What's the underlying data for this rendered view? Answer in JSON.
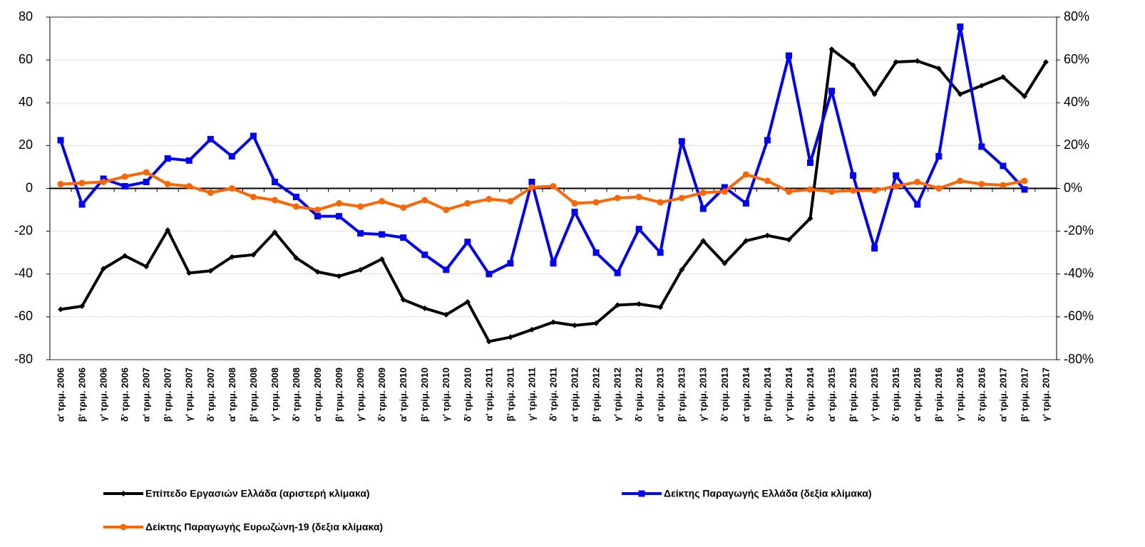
{
  "chart_data": {
    "type": "line",
    "categories": [
      "α' τριμ. 2006",
      "β' τριμ. 2006",
      "γ' τριμ. 2006",
      "δ' τριμ. 2006",
      "α' τριμ. 2007",
      "β' τριμ. 2007",
      "γ' τριμ. 2007",
      "δ' τριμ. 2007",
      "α' τριμ. 2008",
      "β' τριμ. 2008",
      "γ' τριμ. 2008",
      "δ' τριμ. 2008",
      "α' τριμ. 2009",
      "β' τριμ. 2009",
      "γ' τριμ. 2009",
      "δ' τριμ. 2009",
      "α' τρίμ. 2010",
      "β' τρίμ. 2010",
      "γ' τρίμ. 2010",
      "δ' τρίμ. 2010",
      "α' τρίμ. 2011",
      "β' τρίμ. 2011",
      "γ' τρίμ. 2011",
      "δ' τρίμ. 2011",
      "α' τρίμ. 2012",
      "β' τρίμ. 2012",
      "γ' τρίμ. 2012",
      "δ' τρίμ. 2012",
      "α' τρίμ. 2013",
      "β' τρίμ. 2013",
      "γ' τρίμ. 2013",
      "δ' τρίμ. 2013",
      "α' τρίμ. 2014",
      "β' τρίμ. 2014",
      "γ' τρίμ. 2014",
      "δ' τρίμ. 2014",
      "α' τρίμ. 2015",
      "β' τρίμ. 2015",
      "γ' τρίμ. 2015",
      "δ' τρίμ. 2015",
      "α' τρίμ. 2016",
      "β' τρίμ. 2016",
      "γ' τρίμ. 2016",
      "δ' τρίμ. 2016",
      "α' τρίμ. 2017",
      "β' τρίμ. 2017",
      "γ' τρίμ. 2017"
    ],
    "series": [
      {
        "name": "Επίπεδο Εργασιών Ελλάδα (αριστερή κλίμακα)",
        "color": "#000000",
        "marker": "diamond",
        "values": [
          -56.5,
          -55,
          -37.5,
          -31.5,
          -36.5,
          -19.5,
          -39.5,
          -38.5,
          -32,
          -31,
          -20.5,
          -32.5,
          -39,
          -41,
          -38,
          -33,
          -52,
          -56,
          -59,
          -53,
          -71.5,
          -69.5,
          -66,
          -62.5,
          -64,
          -63,
          -54.5,
          -54,
          -55.5,
          -38,
          -24.5,
          -35,
          -24.5,
          -22,
          -24,
          -14,
          65,
          57.5,
          44,
          59,
          59.5,
          56,
          44,
          48,
          52,
          43,
          59
        ]
      },
      {
        "name": "Δείκτης Παραγωγής Ελλάδα (δεξία κλίμακα)",
        "color": "#0000ff",
        "marker": "square",
        "axis": "y2",
        "values": [
          22.5,
          -7.5,
          4.5,
          1,
          3,
          14,
          13,
          23,
          15,
          24.5,
          3,
          -4,
          -13,
          -13,
          -21,
          -21.5,
          -23,
          -31,
          -38,
          -25,
          -40,
          -35,
          3,
          -35,
          -11,
          -30,
          -39.5,
          -19,
          -30,
          22,
          -9.5,
          0.5,
          -7,
          22.5,
          62,
          12,
          45.5,
          6,
          -28,
          6,
          -7.5,
          15,
          75.5,
          19.5,
          10.5,
          -0.5,
          null
        ]
      },
      {
        "name": "Δείκτης Παραγωγής Ευρωζώνη-19 (δεξια κλίμακα)",
        "color": "#ff6600",
        "marker": "circle",
        "axis": "y2",
        "values": [
          2,
          2.5,
          3,
          5.5,
          7.5,
          2,
          1,
          -2,
          0,
          -4,
          -5.5,
          -8.5,
          -10,
          -7,
          -8.5,
          -6,
          -9,
          -5.5,
          -10,
          -7,
          -5,
          -6,
          0.5,
          1,
          -7,
          -6.5,
          -4.5,
          -4,
          -6.5,
          -4.5,
          -2,
          -1.5,
          6.5,
          3.5,
          -1.5,
          -0.5,
          -1.5,
          -1,
          -1,
          1,
          3,
          0,
          3.5,
          2,
          1.5,
          3.5,
          null
        ]
      }
    ],
    "ylim": [
      -80,
      80
    ],
    "yticks": [
      -80,
      -60,
      -40,
      -20,
      0,
      20,
      40,
      60,
      80
    ],
    "y2lim": [
      -80,
      80
    ],
    "y2ticks": [
      {
        "value": -80,
        "label": "-80%"
      },
      {
        "value": -60,
        "label": "-60%"
      },
      {
        "value": -40,
        "label": "-40%"
      },
      {
        "value": -20,
        "label": "-20%"
      },
      {
        "value": 0,
        "label": "0%"
      },
      {
        "value": 20,
        "label": "20%"
      },
      {
        "value": 40,
        "label": "40%"
      },
      {
        "value": 60,
        "label": "60%"
      },
      {
        "value": 80,
        "label": "80%"
      }
    ],
    "grid": true
  }
}
